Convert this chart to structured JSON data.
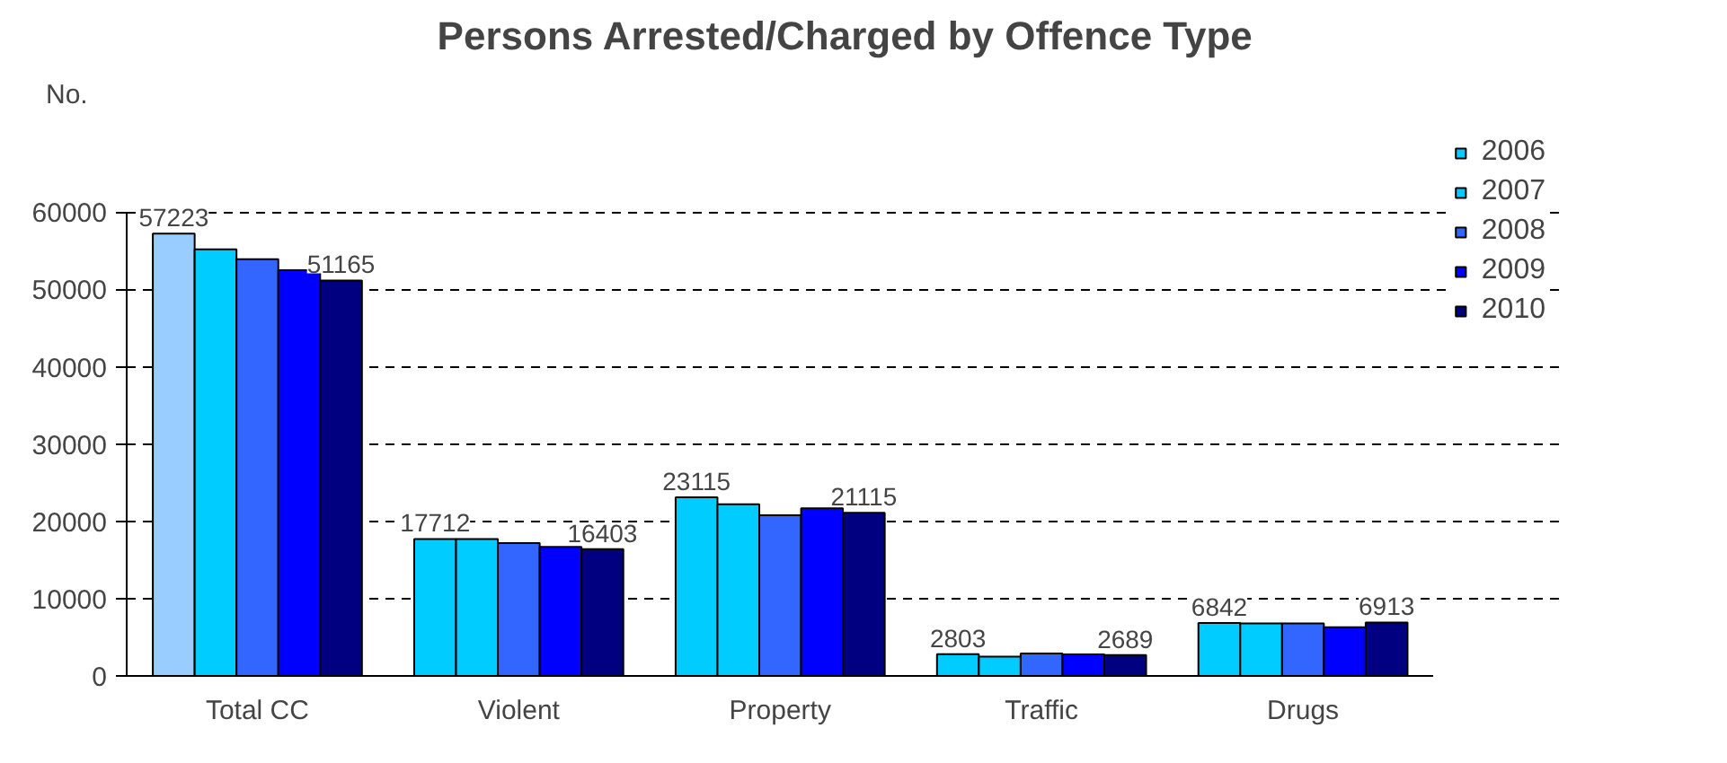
{
  "chart_data": {
    "type": "bar",
    "title": "Persons Arrested/Charged by Offence Type",
    "ylabel": "No.",
    "categories": [
      "Total CC",
      "Violent",
      "Property",
      "Traffic",
      "Drugs"
    ],
    "series": [
      {
        "name": "2006",
        "color": "#00ccff",
        "colors": [
          "#99ccff",
          "#00ccff",
          "#00ccff",
          "#00ccff",
          "#00ccff"
        ],
        "values": [
          57223,
          17712,
          23115,
          2803,
          6842
        ],
        "value_labels": [
          "57223",
          "17712",
          "23115",
          "2803",
          "6842"
        ]
      },
      {
        "name": "2007",
        "color": "#00ccff",
        "values": [
          55200,
          17700,
          22200,
          2500,
          6800
        ]
      },
      {
        "name": "2008",
        "color": "#3366ff",
        "values": [
          53900,
          17200,
          20800,
          2900,
          6800
        ]
      },
      {
        "name": "2009",
        "color": "#0000ff",
        "values": [
          52500,
          16700,
          21700,
          2800,
          6300
        ]
      },
      {
        "name": "2010",
        "color": "#000080",
        "values": [
          51165,
          16403,
          21115,
          2689,
          6913
        ],
        "value_labels": [
          "51165",
          "16403",
          "21115",
          "2689",
          "6913"
        ]
      }
    ],
    "ylim": [
      0,
      60000
    ],
    "yticks": [
      0,
      10000,
      20000,
      30000,
      40000,
      50000,
      60000
    ],
    "grid": "y",
    "legend": "right"
  }
}
